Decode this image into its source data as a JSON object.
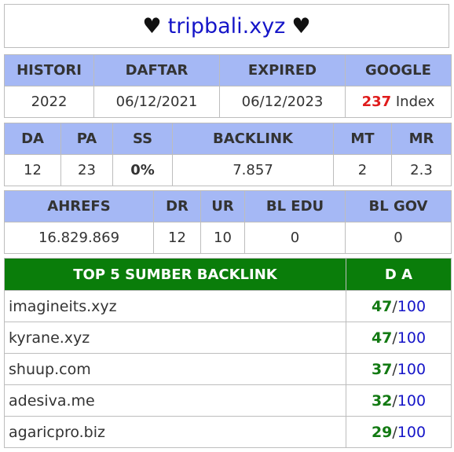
{
  "title": {
    "heart_left": "♥",
    "site": "tripbali.xyz",
    "heart_right": "♥"
  },
  "table1": {
    "headers": [
      "HISTORI",
      "DAFTAR",
      "EXPIRED",
      "GOOGLE"
    ],
    "values": {
      "histori": "2022",
      "daftar": "06/12/2021",
      "expired": "06/12/2023",
      "google_count": "237",
      "google_suffix": " Index"
    }
  },
  "table2": {
    "headers": [
      "DA",
      "PA",
      "SS",
      "BACKLINK",
      "MT",
      "MR"
    ],
    "values": [
      "12",
      "23",
      "0%",
      "7.857",
      "2",
      "2.3"
    ]
  },
  "table3": {
    "headers": [
      "AHREFS",
      "DR",
      "UR",
      "BL EDU",
      "BL GOV"
    ],
    "values": [
      "16.829.869",
      "12",
      "10",
      "0",
      "0"
    ]
  },
  "table4": {
    "headers": [
      "TOP 5 SUMBER BACKLINK",
      "D A"
    ],
    "max": "100",
    "separator": "/",
    "rows": [
      {
        "source": "imagineits.xyz",
        "da": "47"
      },
      {
        "source": "kyrane.xyz",
        "da": "47"
      },
      {
        "source": "shuup.com",
        "da": "37"
      },
      {
        "source": "adesiva.me",
        "da": "32"
      },
      {
        "source": "agaricpro.biz",
        "da": "29"
      }
    ]
  },
  "colors": {
    "header_blue": "#a5b8f5",
    "header_green": "#0a7d0a",
    "site_blue": "#1515c8",
    "google_red": "#e01b1b",
    "ss_green": "#44c010"
  }
}
